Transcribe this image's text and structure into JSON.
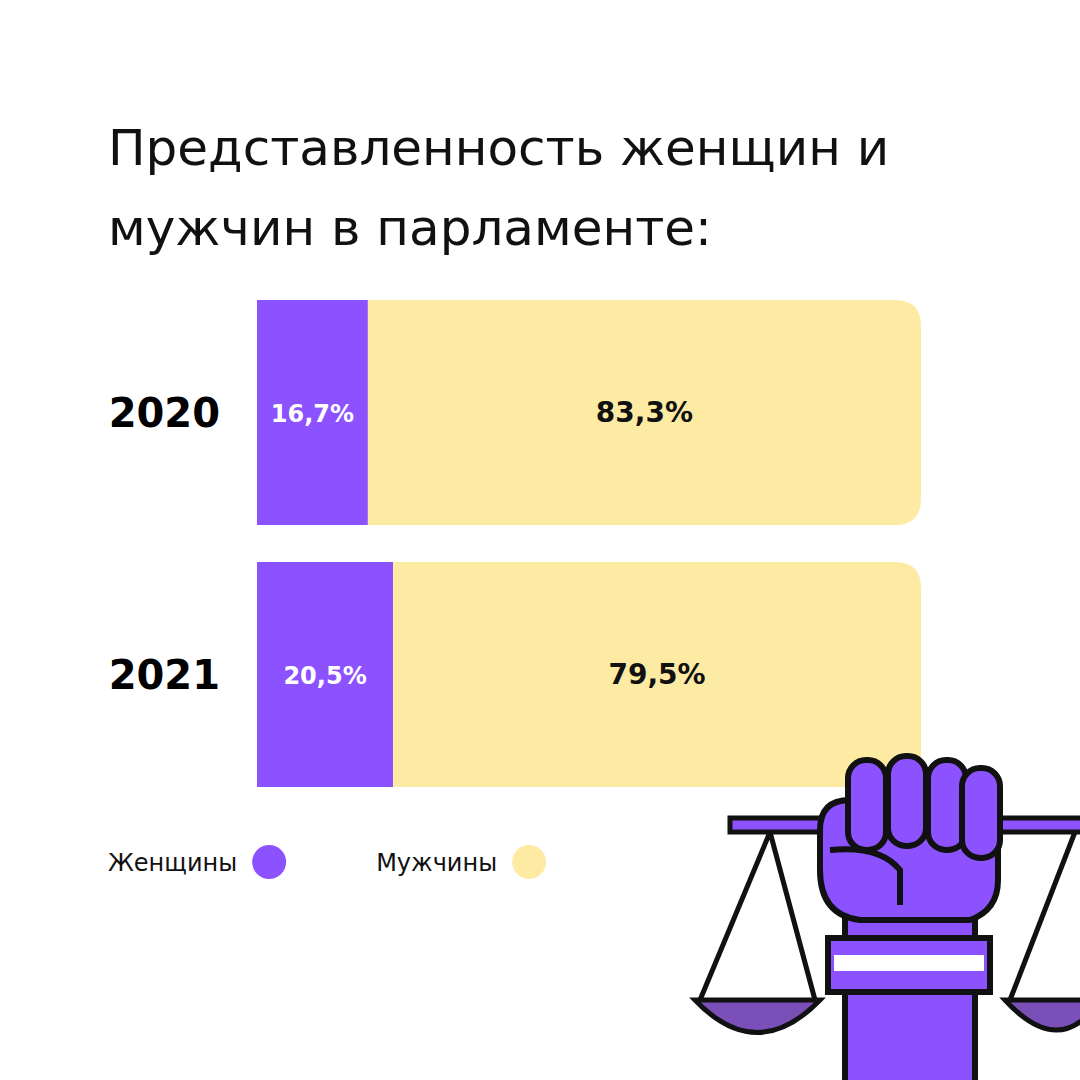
{
  "chart_data": {
    "type": "bar",
    "title": "Представленность женщин и мужчин в парламенте:",
    "orientation": "horizontal",
    "stacked": true,
    "data_labels": true,
    "tick_labels": "y",
    "legend": "bottom-left",
    "categories": [
      "2020",
      "2021"
    ],
    "xlim": [
      0,
      100
    ],
    "series": [
      {
        "name": "Женщины",
        "color": "#8c52ff",
        "values": [
          16.7,
          20.5
        ],
        "value_labels": [
          "16,7%",
          "20,5%"
        ]
      },
      {
        "name": "Мужчины",
        "color": "#fdeba3",
        "values": [
          83.3,
          79.5
        ],
        "value_labels": [
          "83,3%",
          "79,5%"
        ]
      }
    ]
  }
}
